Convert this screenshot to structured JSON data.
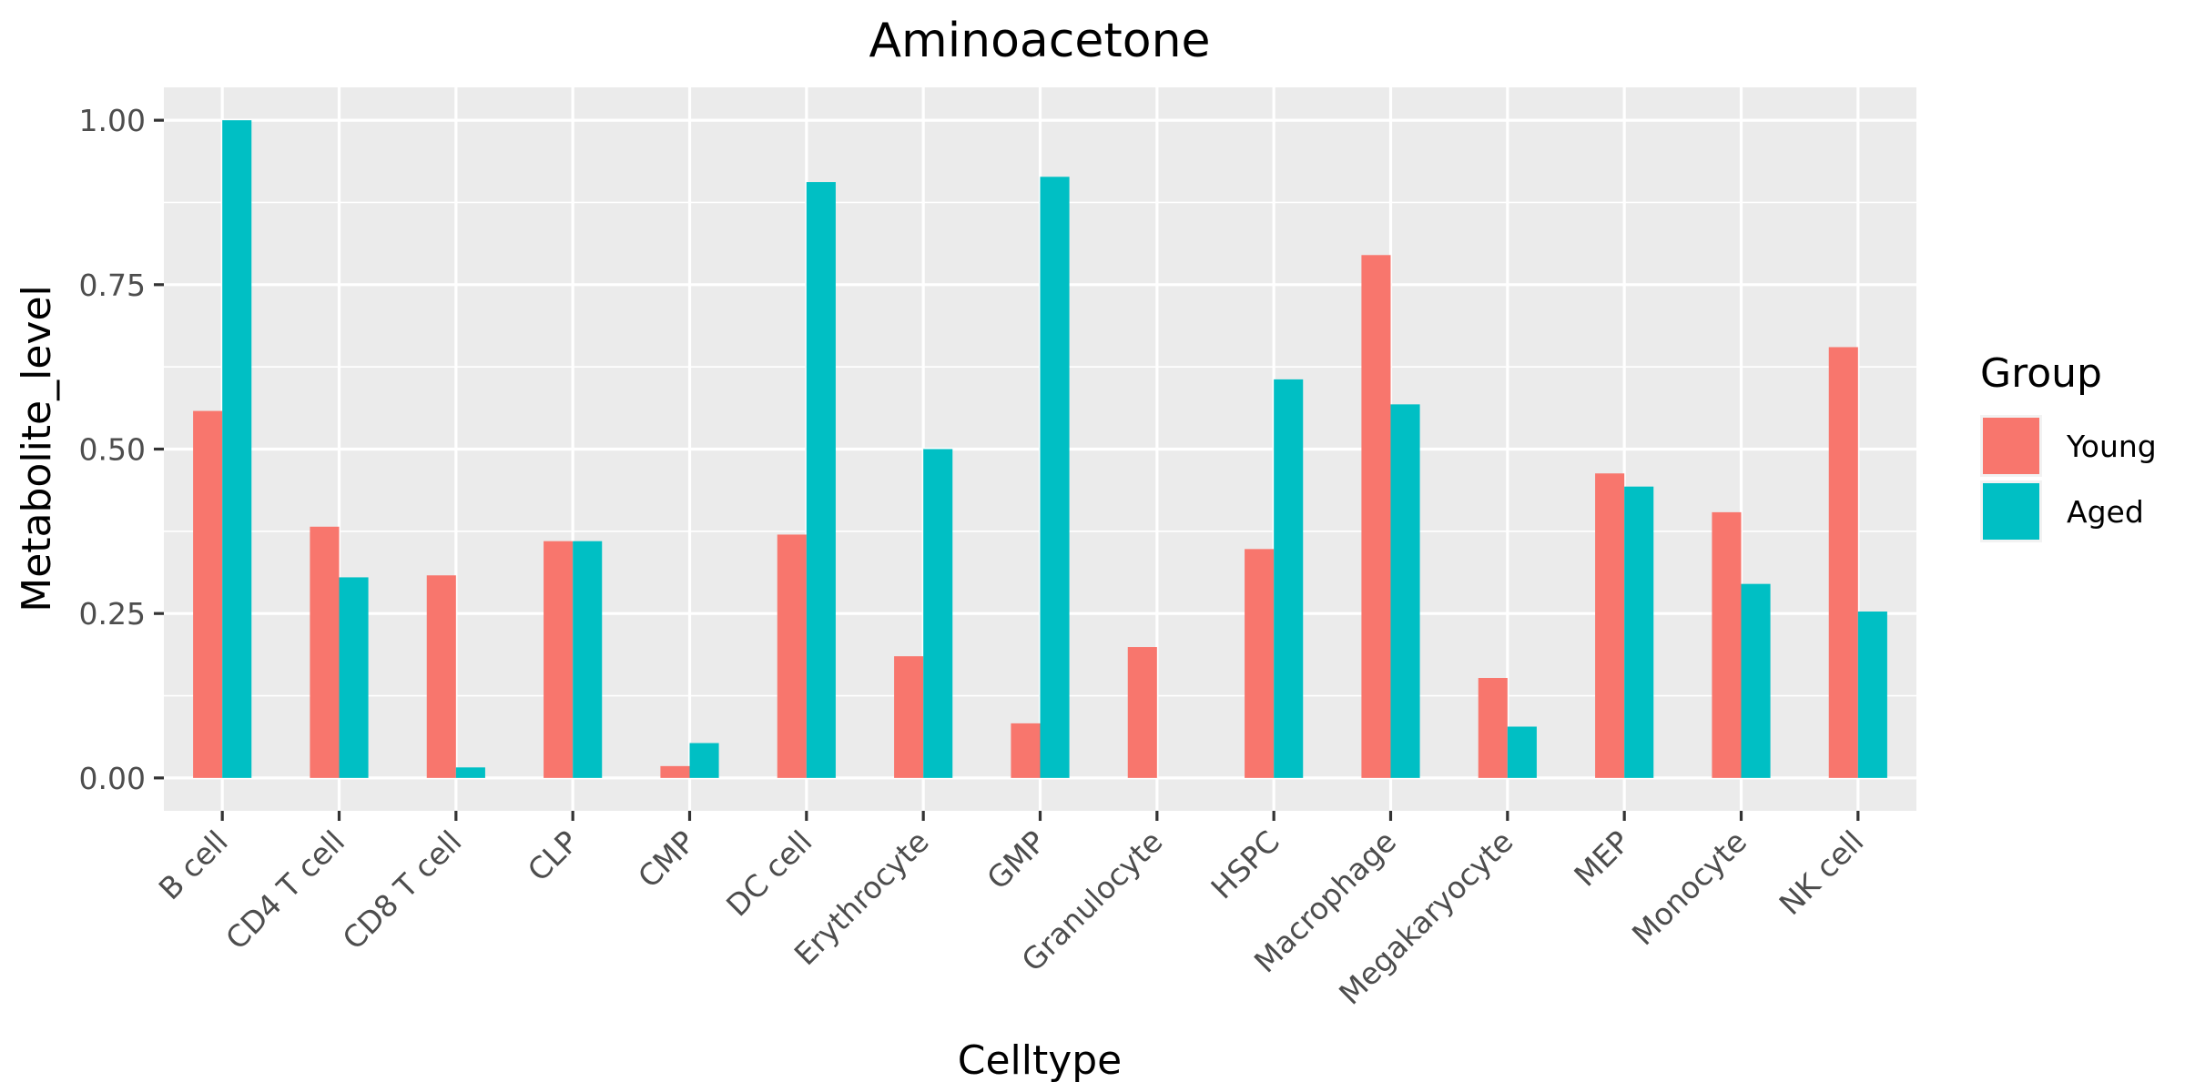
{
  "chart_data": {
    "type": "bar",
    "title": "Aminoacetone",
    "xlabel": "Celltype",
    "ylabel": "Metabolite_level",
    "ylim": [
      -0.05,
      1.05
    ],
    "yticks": [
      0,
      0.25,
      0.5,
      0.75,
      1.0
    ],
    "ytick_labels": [
      "0.00",
      "0.25",
      "0.50",
      "0.75",
      "1.00"
    ],
    "grid": true,
    "legend": {
      "title": "Group",
      "position": "right"
    },
    "categories": [
      "B cell",
      "CD4 T cell",
      "CD8 T cell",
      "CLP",
      "CMP",
      "DC cell",
      "Erythrocyte",
      "GMP",
      "Granulocyte",
      "HSPC",
      "Macrophage",
      "Megakaryocyte",
      "MEP",
      "Monocyte",
      "NK cell"
    ],
    "series": [
      {
        "name": "Young",
        "color": "#F8766D",
        "values": [
          0.558,
          0.382,
          0.308,
          0.36,
          0.018,
          0.37,
          0.185,
          0.083,
          0.199,
          0.348,
          0.795,
          0.152,
          0.463,
          0.404,
          0.655
        ]
      },
      {
        "name": "Aged",
        "color": "#00BFC4",
        "values": [
          1.0,
          0.305,
          0.016,
          0.36,
          0.053,
          0.906,
          0.5,
          0.914,
          0.0,
          0.606,
          0.568,
          0.078,
          0.443,
          0.295,
          0.253
        ]
      }
    ]
  }
}
